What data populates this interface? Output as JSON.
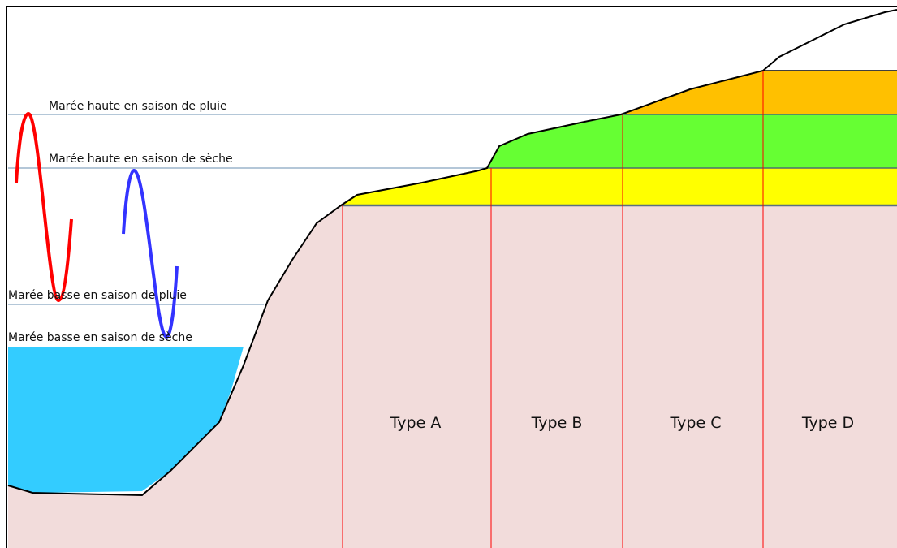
{
  "levels": [
    "Marée haute en saison de pluie",
    "Marée haute en saison de sèche",
    "Marée basse en saison de pluie",
    "Marée basse en saison de sèche"
  ],
  "zones": [
    "Type A",
    "Type B",
    "Type C",
    "Type D"
  ]
}
